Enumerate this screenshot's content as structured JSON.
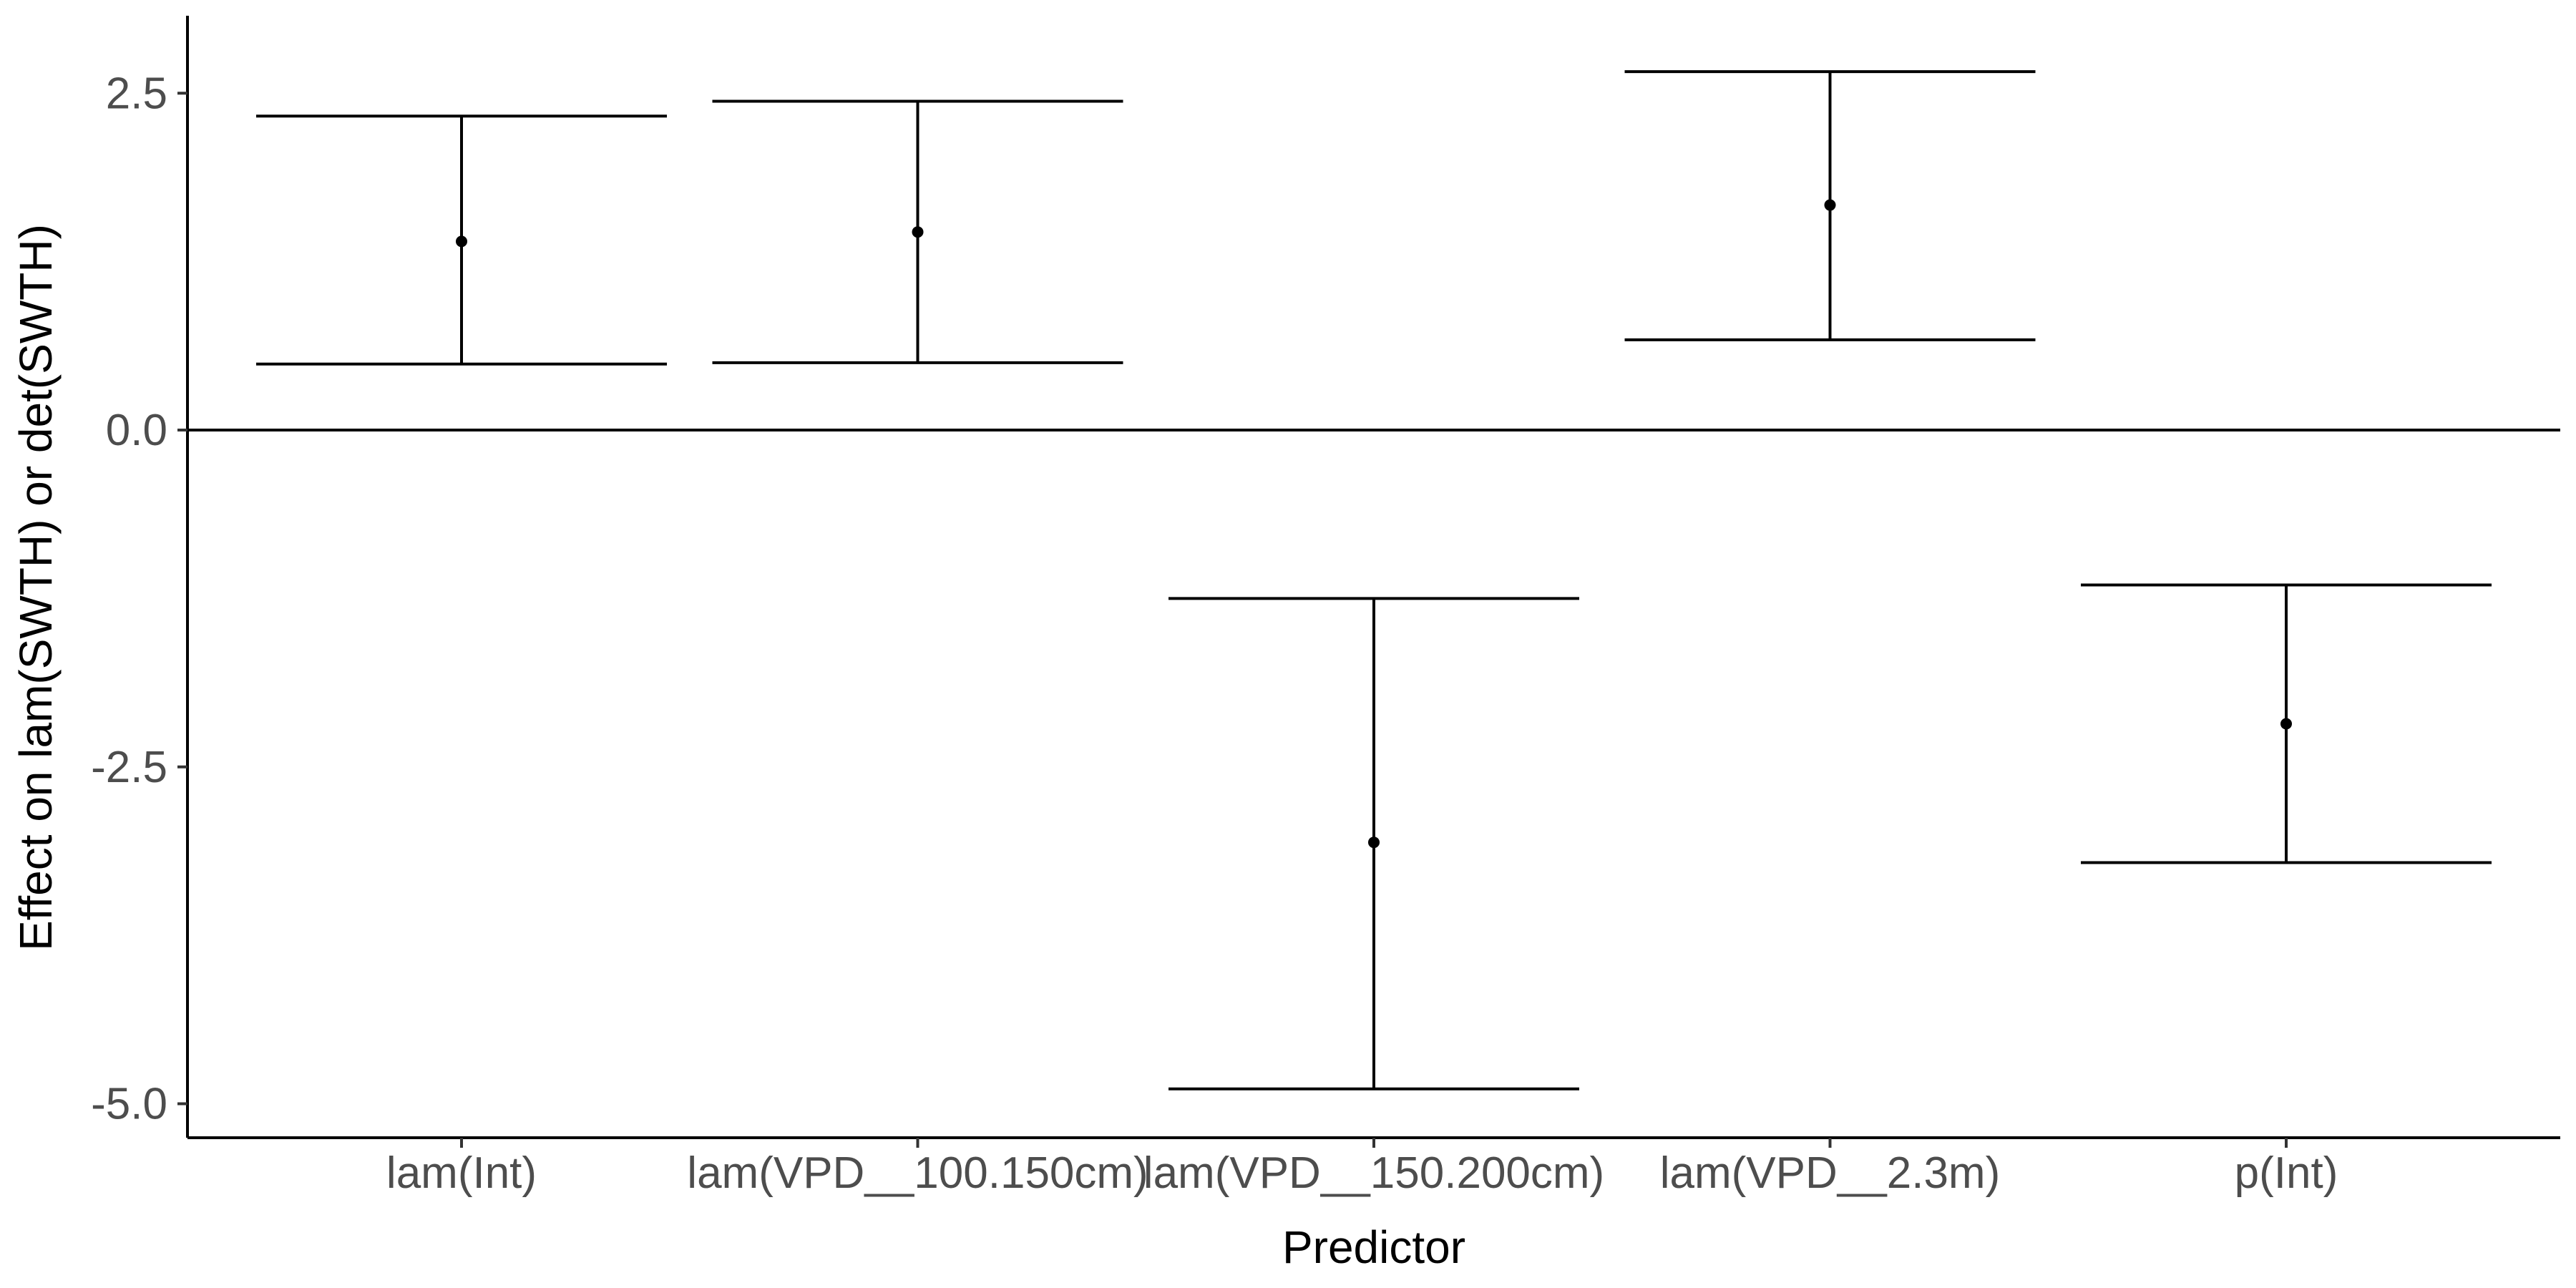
{
  "chart_data": {
    "type": "errorbar",
    "xlabel": "Predictor",
    "ylabel": "Effect on lam(SWTH) or det(SWTH)",
    "categories": [
      "lam(Int)",
      "lam(VPD__100.150cm)",
      "lam(VPD__150.200cm)",
      "lam(VPD__2.3m)",
      "p(Int)"
    ],
    "estimates": [
      1.4,
      1.47,
      -3.06,
      1.67,
      -2.18
    ],
    "lower": [
      0.49,
      0.5,
      -4.89,
      0.67,
      -3.21
    ],
    "upper": [
      2.33,
      2.44,
      -1.25,
      2.66,
      -1.15
    ],
    "yticks": [
      2.5,
      0.0,
      -2.5,
      -5.0
    ],
    "ytick_labels": [
      "2.5",
      "0.0",
      "-2.5",
      "-5.0"
    ],
    "ylim": [
      -5.25,
      3.05
    ],
    "reference_line": 0,
    "grid": false,
    "legend": "none",
    "colors": {
      "marks": "#000000",
      "tick_text": "#4d4d4d",
      "background": "#ffffff"
    }
  }
}
